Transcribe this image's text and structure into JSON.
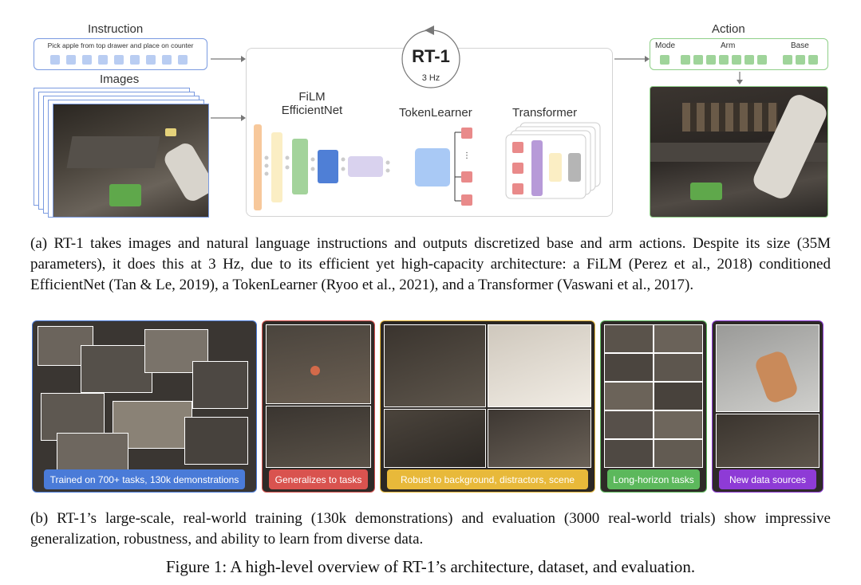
{
  "diagram": {
    "instruction_label": "Instruction",
    "instruction_text": "Pick apple from top drawer and place on counter",
    "images_label": "Images",
    "model_name": "RT-1",
    "model_rate": "3 Hz",
    "film_label_line1": "FiLM",
    "film_label_line2": "EfficientNet",
    "tokenlearner_label": "TokenLearner",
    "transformer_label": "Transformer",
    "action_label": "Action",
    "action_mode": "Mode",
    "action_arm": "Arm",
    "action_base": "Base",
    "colors": {
      "instruction_border": "#7a9ae0",
      "action_border": "#8fcf88",
      "film_orange": "#f7c89b",
      "film_yellow": "#fbeec4",
      "film_green": "#a3d39b",
      "film_blue": "#4f7fd6",
      "film_lavender": "#d9d2ee",
      "tokenlearner_blue": "#a9c9f5",
      "token_red": "#e98a8a",
      "transformer_purple": "#b79ad8",
      "transformer_yellow": "#fbeec4",
      "transformer_gray": "#b5b5b5"
    }
  },
  "caption_a": "(a) RT-1 takes images and natural language instructions and outputs discretized base and arm actions. Despite its size (35M parameters), it does this at 3 Hz, due to its efficient yet high-capacity architecture: a FiLM (Perez et al., 2018) conditioned EfficientNet (Tan & Le, 2019), a TokenLearner (Ryoo et al., 2021), and a Transformer (Vaswani et al., 2017).",
  "panels": [
    {
      "label": "Trained on 700+ tasks, 130k demonstrations",
      "color": "#4a7bd8"
    },
    {
      "label": "Generalizes to tasks",
      "color": "#d9534f"
    },
    {
      "label": "Robust to background, distractors, scene",
      "color": "#e8b93a"
    },
    {
      "label": "Long-horizon tasks",
      "color": "#5cb85c"
    },
    {
      "label": "New data sources",
      "color": "#8e3bd6"
    }
  ],
  "caption_b": "(b) RT-1’s large-scale, real-world training (130k demonstrations) and evaluation (3000 real-world trials) show impressive generalization, robustness, and ability to learn from diverse data.",
  "figure_caption": "Figure 1: A high-level overview of RT-1’s architecture, dataset, and evaluation."
}
